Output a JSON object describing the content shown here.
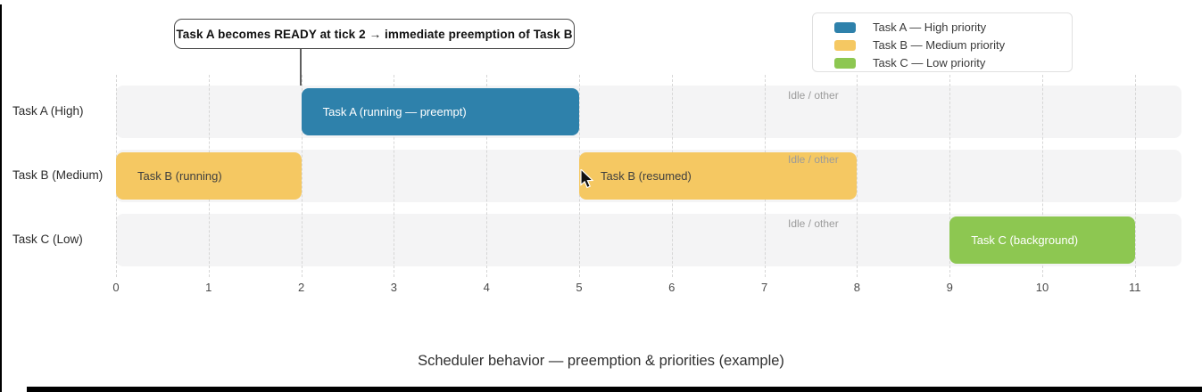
{
  "annotation": {
    "text": "Task A becomes READY at tick 2 → immediate preemption of Task B"
  },
  "legend": {
    "items": [
      {
        "label": "Task A — High priority",
        "color": "#2e81ab"
      },
      {
        "label": "Task B — Medium priority",
        "color": "#f5c862"
      },
      {
        "label": "Task C — Low priority",
        "color": "#8dc751"
      }
    ]
  },
  "chart_data": {
    "type": "gantt",
    "title": "Scheduler behavior — preemption & priorities (example)",
    "xlabel": "",
    "ylabel": "",
    "xlim": [
      0,
      11.5
    ],
    "x_ticks": [
      0,
      1,
      2,
      3,
      4,
      5,
      6,
      7,
      8,
      9,
      10,
      11
    ],
    "grid": "dashed-vertical",
    "legend_position": "top-right",
    "idle_label": "Idle / other",
    "rows": [
      {
        "label": "Task A (High)",
        "segments": [
          {
            "label": "Task A (running — preempt)",
            "start": 2,
            "end": 5,
            "color": "#2e81ab",
            "text_color": "#ffffff"
          }
        ]
      },
      {
        "label": "Task B (Medium)",
        "segments": [
          {
            "label": "Task B (running)",
            "start": 0,
            "end": 2,
            "color": "#f5c862",
            "text_color": "#3f3f3f"
          },
          {
            "label": "Task B (resumed)",
            "start": 5,
            "end": 8,
            "color": "#f5c862",
            "text_color": "#3f3f3f"
          }
        ]
      },
      {
        "label": "Task C (Low)",
        "segments": [
          {
            "label": "Task C (background)",
            "start": 9,
            "end": 11,
            "color": "#8dc751",
            "text_color": "#ffffff"
          }
        ]
      }
    ],
    "colors": {
      "lane_bg": "#f4f4f5",
      "gridline": "#d6d6d6",
      "tick_text": "#4a4a4a",
      "idle_text": "#9b9b9b",
      "row_label_text": "#2b2b2b",
      "title_text": "#303030"
    }
  }
}
